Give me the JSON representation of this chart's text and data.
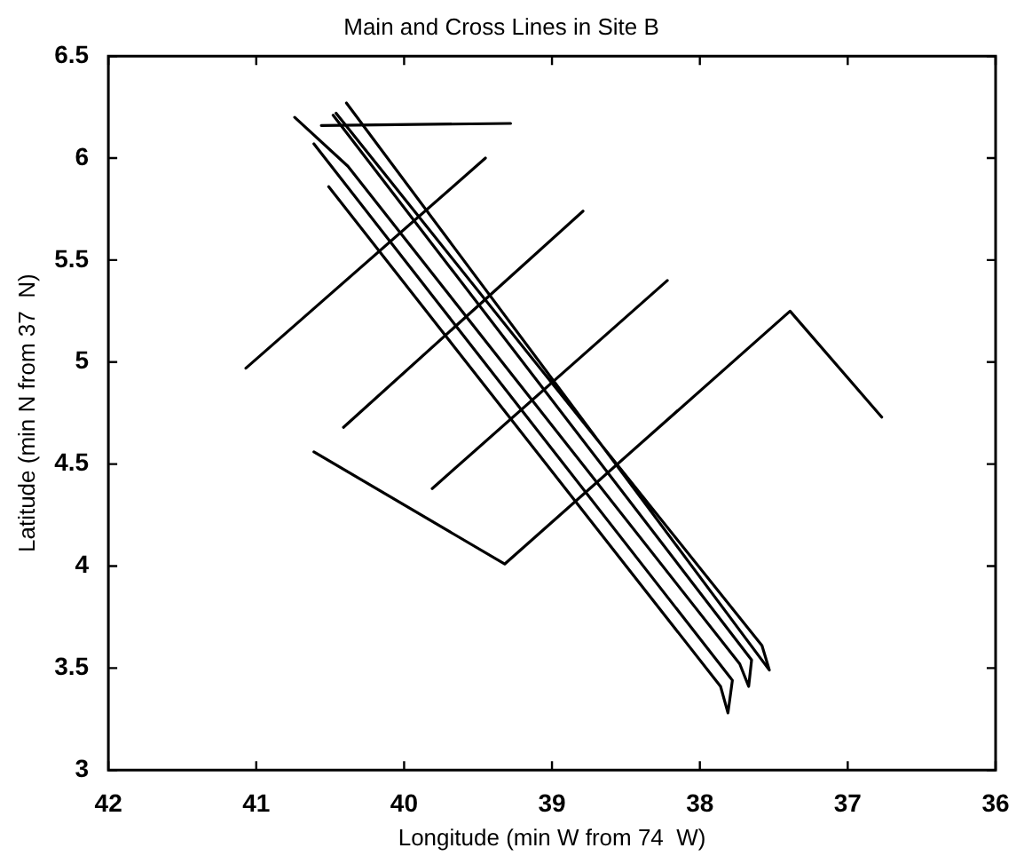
{
  "chart_data": {
    "type": "line",
    "title": "Main and Cross Lines in Site B",
    "xlabel": "Longitude (min W from 74  W)",
    "ylabel": "Latitude (min N from 37  N)",
    "xlim": [
      42,
      36
    ],
    "xticks": [
      42,
      41,
      40,
      39,
      38,
      37,
      36
    ],
    "ylim": [
      3,
      6.5
    ],
    "yticks": [
      3,
      3.5,
      4,
      4.5,
      5,
      5.5,
      6,
      6.5
    ],
    "grid": false,
    "legend": false,
    "marker": "none",
    "line_style": "solid",
    "series": [
      {
        "color": "#000000",
        "x": [
          40.51,
          37.86,
          37.81,
          37.78,
          40.61
        ],
        "values": [
          5.86,
          3.41,
          3.28,
          3.44,
          6.07
        ]
      },
      {
        "color": "#000000",
        "x": [
          40.74,
          40.38,
          37.73,
          37.67,
          37.65,
          40.48
        ],
        "values": [
          6.2,
          5.96,
          3.52,
          3.41,
          3.54,
          6.21
        ]
      },
      {
        "color": "#000000",
        "x": [
          40.46,
          37.58,
          37.53,
          40.39
        ],
        "values": [
          6.22,
          3.61,
          3.49,
          6.27
        ]
      },
      {
        "color": "#000000",
        "x": [
          40.56,
          39.28
        ],
        "values": [
          6.16,
          6.17
        ]
      },
      {
        "color": "#000000",
        "x": [
          41.07,
          39.45
        ],
        "values": [
          4.97,
          6.0
        ]
      },
      {
        "color": "#000000",
        "x": [
          40.41,
          38.79
        ],
        "values": [
          4.68,
          5.74
        ]
      },
      {
        "color": "#000000",
        "x": [
          39.81,
          38.22
        ],
        "values": [
          4.38,
          5.4
        ]
      },
      {
        "color": "#000000",
        "x": [
          40.61,
          39.32,
          37.39,
          36.77
        ],
        "values": [
          4.56,
          4.01,
          5.25,
          4.73
        ]
      }
    ]
  }
}
